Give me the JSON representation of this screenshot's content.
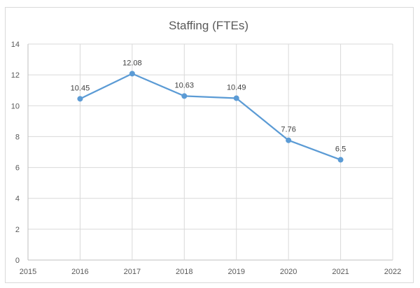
{
  "chart_data": {
    "type": "line",
    "title": "Staffing (FTEs)",
    "xlabel": "",
    "ylabel": "",
    "xlim": [
      2015,
      2022
    ],
    "ylim": [
      0,
      14
    ],
    "xticks": [
      2015,
      2016,
      2017,
      2018,
      2019,
      2020,
      2021,
      2022
    ],
    "yticks": [
      0,
      2,
      4,
      6,
      8,
      10,
      12,
      14
    ],
    "grid": true,
    "legend": "none",
    "series": [
      {
        "x": [
          2016,
          2017,
          2018,
          2019,
          2020,
          2021
        ],
        "values": [
          10.45,
          12.08,
          10.63,
          10.49,
          7.76,
          6.5
        ],
        "labels": [
          "10.45",
          "12.08",
          "10.63",
          "10.49",
          "7.76",
          "6.5"
        ],
        "color": "#5b9bd5"
      }
    ]
  }
}
